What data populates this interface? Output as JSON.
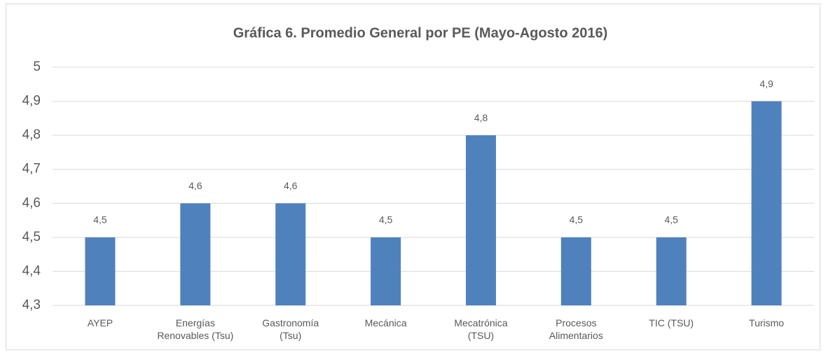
{
  "chart_data": {
    "type": "bar",
    "title": "Gráfica  6. Promedio General por PE (Mayo-Agosto 2016)",
    "categories": [
      "AYEP",
      "Energías\nRenovables  (Tsu)",
      "Gastronomía\n(Tsu)",
      "Mecánica",
      "Mecatrónica\n(TSU)",
      "Procesos\nAlimentarios",
      "TIC (TSU)",
      "Turismo"
    ],
    "values": [
      4.5,
      4.6,
      4.6,
      4.5,
      4.8,
      4.5,
      4.5,
      4.9
    ],
    "value_labels": [
      "4,5",
      "4,6",
      "4,6",
      "4,5",
      "4,8",
      "4,5",
      "4,5",
      "4,9"
    ],
    "color": "#4f81bd",
    "ylim": [
      4.3,
      5
    ],
    "yticks": [
      {
        "value": 4.3,
        "label": "4,3"
      },
      {
        "value": 4.4,
        "label": "4,4"
      },
      {
        "value": 4.5,
        "label": "4,5"
      },
      {
        "value": 4.6,
        "label": "4,6"
      },
      {
        "value": 4.7,
        "label": "4,7"
      },
      {
        "value": 4.8,
        "label": "4,8"
      },
      {
        "value": 4.9,
        "label": "4,9"
      },
      5
    ],
    "grid": true
  }
}
